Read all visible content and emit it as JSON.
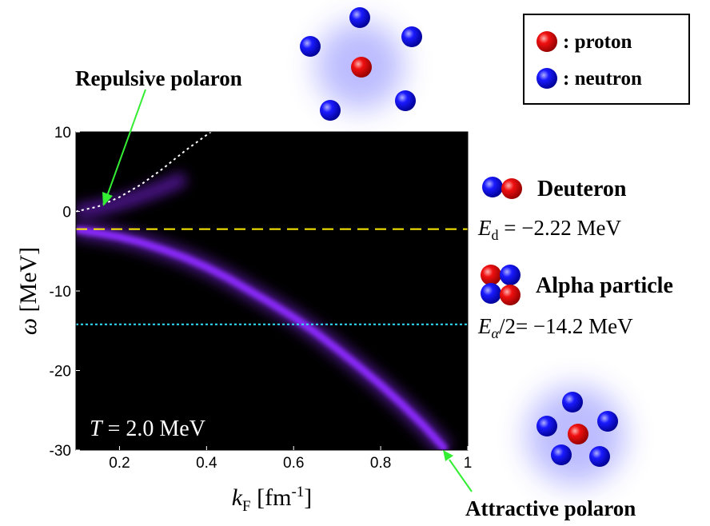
{
  "chart_data": {
    "type": "line",
    "xlim": [
      0.1,
      1.0
    ],
    "ylim": [
      -30,
      10
    ],
    "xticks": [
      0.2,
      0.4,
      0.6,
      0.8,
      1
    ],
    "yticks": [
      10,
      0,
      -10,
      -20,
      -30
    ],
    "background": "#000000",
    "xlabel": {
      "main": "k",
      "sub": "F",
      "unit": " [fm",
      "sup": "-1",
      "end": "]"
    },
    "ylabel": {
      "main": "ω",
      "unit": " [MeV]"
    },
    "series": [
      {
        "color": "#8c2cff",
        "style": "band",
        "x": [
          0.1,
          0.15,
          0.2,
          0.25,
          0.3,
          0.35,
          0.4,
          0.45,
          0.5,
          0.55,
          0.6,
          0.65,
          0.7,
          0.75,
          0.8,
          0.85,
          0.9,
          0.95
        ],
        "values": [
          -2.3,
          -2.7,
          -3.2,
          -3.9,
          -4.8,
          -5.8,
          -7,
          -8.4,
          -10,
          -11.6,
          -13.3,
          -15.2,
          -17.3,
          -19.5,
          -21.8,
          -24.3,
          -27,
          -30
        ]
      },
      {
        "color": "#7a20e0",
        "style": "glow",
        "x": [
          0.1,
          0.15,
          0.2,
          0.25,
          0.3,
          0.35
        ],
        "values": [
          0,
          0.4,
          1.1,
          2,
          3,
          4.2
        ]
      },
      {
        "color": "#ffffff",
        "style": "dotted",
        "x": [
          0.1,
          0.15,
          0.2,
          0.25,
          0.3,
          0.35,
          0.4,
          0.41
        ],
        "values": [
          0,
          0.6,
          1.8,
          3.4,
          5.4,
          7.6,
          9.6,
          10
        ]
      }
    ],
    "hlines": [
      {
        "value": -2.22,
        "color": "#ffee00",
        "style": "dashed"
      },
      {
        "value": -14.2,
        "color": "#33e0ff",
        "style": "dotted"
      }
    ],
    "annotations": {
      "repulsive": "Repulsive polaron",
      "attractive": "Attractive polaron",
      "temperature": {
        "main": "T",
        "rest": " = 2.0 MeV"
      },
      "deuteron": "Deuteron",
      "deuteron_energy": {
        "main": "E",
        "sub": "d",
        "rest": " = −2.22 MeV"
      },
      "alpha": "Alpha particle",
      "alpha_energy": {
        "main": "E",
        "sub": "α",
        "rest": "/2= −14.2 MeV"
      }
    },
    "legend": {
      "proton": ": proton",
      "neutron": ": neutron"
    }
  }
}
